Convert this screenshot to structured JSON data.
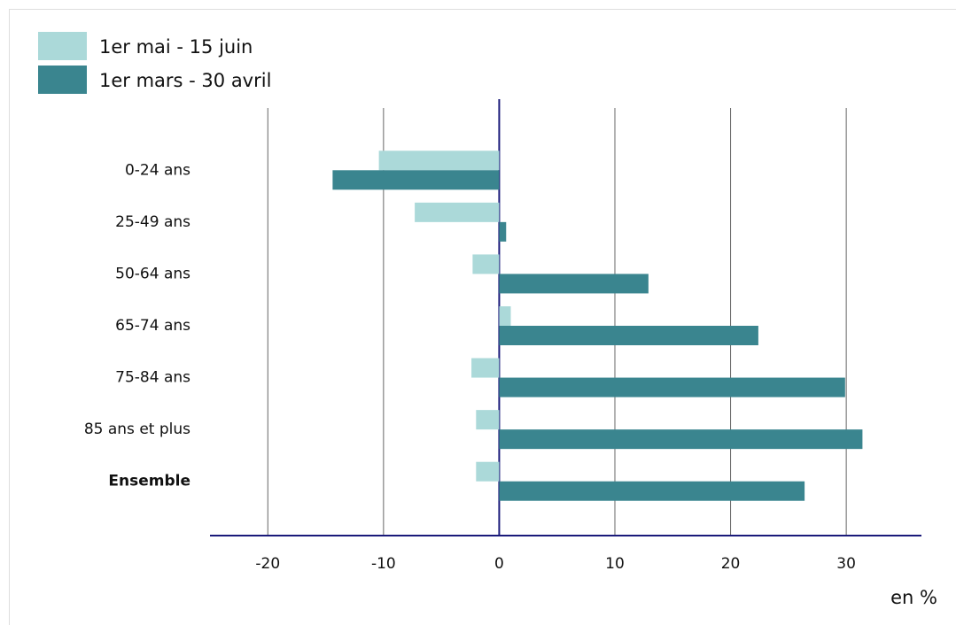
{
  "chart_data": {
    "type": "bar",
    "orientation": "horizontal",
    "categories": [
      "0-24 ans",
      "25-49 ans",
      "50-64 ans",
      "65-74 ans",
      "75-84 ans",
      "85 ans et plus",
      "Ensemble"
    ],
    "series": [
      {
        "name": "1er mai - 15 juin",
        "color": "#abd9d9",
        "values": [
          -10.4,
          -7.3,
          -2.3,
          1.0,
          -2.4,
          -2.0,
          -2.0
        ]
      },
      {
        "name": "1er mars - 30 avril",
        "color": "#3a858f",
        "values": [
          -14.4,
          0.6,
          12.9,
          22.4,
          29.9,
          31.4,
          26.4
        ]
      }
    ],
    "xlim": [
      -25,
      36.5
    ],
    "xticks": [
      -20,
      -10,
      0,
      10,
      20,
      30
    ],
    "grid": true,
    "x_axis_label": "en %",
    "legend_position": "top-left"
  }
}
